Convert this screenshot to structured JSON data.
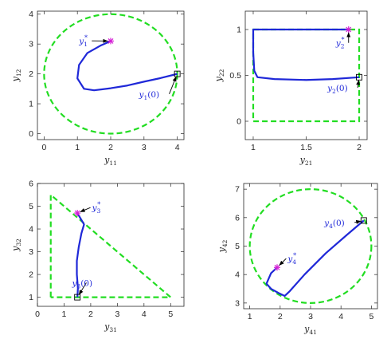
{
  "colors": {
    "boundary": "#22dd22",
    "trajectory": "#1f28d8",
    "start_marker": "#000000",
    "target_marker": "#d520d5",
    "annotation": "#1f28d8",
    "arrow": "#000000"
  },
  "chart_data": [
    {
      "id": "p1",
      "type": "line",
      "title": "",
      "xlabel": {
        "var": "y",
        "sub": "11"
      },
      "ylabel": {
        "var": "y",
        "sub": "12"
      },
      "xlim": [
        -0.2,
        4.2
      ],
      "ylim": [
        -0.2,
        4.1
      ],
      "xticks": [
        0,
        1,
        2,
        3,
        4
      ],
      "yticks": [
        0,
        1,
        2,
        3,
        4
      ],
      "xtick_labels": [
        "0",
        "1",
        "2",
        "3",
        "4"
      ],
      "ytick_labels": [
        "0",
        "1",
        "2",
        "3",
        "4"
      ],
      "grid": false,
      "boundary": {
        "shape": "circle",
        "center": [
          2,
          2
        ],
        "radius": 2
      },
      "trajectory": {
        "x": [
          4,
          3.5,
          3.0,
          2.5,
          2.0,
          1.5,
          1.2,
          1.0,
          1.05,
          1.3,
          1.7,
          2.0
        ],
        "y": [
          2.0,
          1.86,
          1.74,
          1.61,
          1.52,
          1.45,
          1.5,
          1.85,
          2.3,
          2.7,
          2.95,
          3.1
        ]
      },
      "start": [
        4,
        2
      ],
      "target": [
        2,
        3.1
      ],
      "annotations": [
        {
          "text": {
            "var": "y",
            "sub": "1",
            "sup": "*"
          },
          "at": [
            2,
            3.1
          ],
          "label_pos": [
            1.05,
            3.0
          ]
        },
        {
          "text": {
            "var": "y",
            "sub": "1",
            "tail": "(0)"
          },
          "at": [
            4,
            2
          ],
          "label_pos": [
            2.85,
            1.22
          ]
        }
      ]
    },
    {
      "id": "p2",
      "type": "line",
      "title": "",
      "xlabel": {
        "var": "y",
        "sub": "21"
      },
      "ylabel": {
        "var": "y",
        "sub": "22"
      },
      "xlim": [
        0.925,
        2.075
      ],
      "ylim": [
        -0.2,
        1.2
      ],
      "xticks": [
        1,
        1.5,
        2
      ],
      "yticks": [
        0,
        0.5,
        1
      ],
      "xtick_labels": [
        "1",
        "1.5",
        "2"
      ],
      "ytick_labels": [
        "0",
        "0.5",
        "1"
      ],
      "grid": false,
      "boundary": {
        "shape": "rect",
        "x": [
          1,
          2
        ],
        "y": [
          0,
          1
        ]
      },
      "trajectory": {
        "x": [
          2,
          1.75,
          1.5,
          1.2,
          1.04,
          1.01,
          1.0,
          1.0,
          1.0,
          1.2,
          1.5,
          1.8,
          1.9
        ],
        "y": [
          0.48,
          0.46,
          0.45,
          0.46,
          0.48,
          0.55,
          0.75,
          0.95,
          1.0,
          1.0,
          1.0,
          1.0,
          1.0
        ]
      },
      "start": [
        2,
        0.48
      ],
      "target": [
        1.9,
        1.0
      ],
      "annotations": [
        {
          "text": {
            "var": "y",
            "sub": "2",
            "sup": "*"
          },
          "at": [
            1.9,
            1.0
          ],
          "label_pos": [
            1.78,
            0.82
          ]
        },
        {
          "text": {
            "var": "y",
            "sub": "2",
            "tail": "(0)"
          },
          "at": [
            2,
            0.48
          ],
          "label_pos": [
            1.7,
            0.33
          ]
        }
      ]
    },
    {
      "id": "p3",
      "type": "line",
      "title": "",
      "xlabel": {
        "var": "y",
        "sub": "31"
      },
      "ylabel": {
        "var": "y",
        "sub": "32"
      },
      "xlim": [
        0,
        5.5
      ],
      "ylim": [
        0.6,
        6.0
      ],
      "xticks": [
        0,
        1,
        2,
        3,
        4,
        5
      ],
      "yticks": [
        1,
        2,
        3,
        4,
        5,
        6
      ],
      "xtick_labels": [
        "0",
        "1",
        "2",
        "3",
        "4",
        "5"
      ],
      "ytick_labels": [
        "1",
        "2",
        "3",
        "4",
        "5",
        "6"
      ],
      "grid": false,
      "boundary": {
        "shape": "polygon",
        "x": [
          0.5,
          0.5,
          5,
          0.5
        ],
        "y": [
          1,
          5.5,
          1,
          1
        ]
      },
      "trajectory": {
        "x": [
          1.5,
          1.52,
          1.48,
          1.48,
          1.55,
          1.65,
          1.75,
          1.6,
          1.5
        ],
        "y": [
          1.0,
          1.4,
          2.0,
          2.6,
          3.2,
          3.8,
          4.2,
          4.5,
          4.7
        ]
      },
      "start": [
        1.5,
        1.0
      ],
      "target": [
        1.5,
        4.7
      ],
      "annotations": [
        {
          "text": {
            "var": "y",
            "sub": "3",
            "sup": "*"
          },
          "at": [
            1.5,
            4.7
          ],
          "label_pos": [
            2.05,
            4.8
          ]
        },
        {
          "text": {
            "var": "y",
            "sub": "3",
            "tail": "(0)"
          },
          "at": [
            1.5,
            1.0
          ],
          "label_pos": [
            1.3,
            1.5
          ]
        }
      ]
    },
    {
      "id": "p4",
      "type": "line",
      "title": "",
      "xlabel": {
        "var": "y",
        "sub": "41"
      },
      "ylabel": {
        "var": "y",
        "sub": "42"
      },
      "xlim": [
        0.8,
        5.2
      ],
      "ylim": [
        2.8,
        7.2
      ],
      "xticks": [
        1,
        2,
        3,
        4,
        5
      ],
      "yticks": [
        3,
        4,
        5,
        6,
        7
      ],
      "xtick_labels": [
        "1",
        "2",
        "3",
        "4",
        "5"
      ],
      "ytick_labels": [
        "3",
        "4",
        "5",
        "6",
        "7"
      ],
      "grid": false,
      "boundary": {
        "shape": "circle",
        "center": [
          3,
          5
        ],
        "radius": 2
      },
      "trajectory": {
        "x": [
          4.75,
          4.2,
          3.5,
          2.8,
          2.3,
          2.15,
          1.95,
          1.7,
          1.55,
          1.7,
          1.9
        ],
        "y": [
          5.9,
          5.4,
          4.75,
          4.0,
          3.4,
          3.25,
          3.35,
          3.5,
          3.68,
          4.05,
          4.25
        ]
      },
      "start": [
        4.75,
        5.9
      ],
      "target": [
        1.9,
        4.25
      ],
      "annotations": [
        {
          "text": {
            "var": "y",
            "sub": "4",
            "sup": "*"
          },
          "at": [
            1.9,
            4.25
          ],
          "label_pos": [
            2.25,
            4.45
          ]
        },
        {
          "text": {
            "var": "y",
            "sub": "4",
            "tail": "(0)"
          },
          "at": [
            4.75,
            5.9
          ],
          "label_pos": [
            3.45,
            5.72
          ]
        }
      ]
    }
  ]
}
